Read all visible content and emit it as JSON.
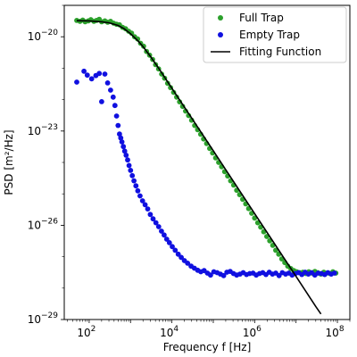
{
  "chart_data": {
    "type": "scatter",
    "title": "",
    "xlabel": "Frequency f [Hz]",
    "ylabel": "PSD [m²/Hz]",
    "x_scale": "log",
    "y_scale": "log",
    "xlim": [
      25,
      200000000
    ],
    "ylim": [
      1e-29,
      1e-19
    ],
    "x_ticks": [
      {
        "value": 100,
        "base": "10",
        "exp": "2"
      },
      {
        "value": 10000,
        "base": "10",
        "exp": "4"
      },
      {
        "value": 1000000,
        "base": "10",
        "exp": "6"
      },
      {
        "value": 100000000,
        "base": "10",
        "exp": "8"
      }
    ],
    "y_ticks": [
      {
        "value": 1e-20,
        "base": "10",
        "exp": "−20"
      },
      {
        "value": 1e-23,
        "base": "10",
        "exp": "−23"
      },
      {
        "value": 1e-26,
        "base": "10",
        "exp": "−26"
      },
      {
        "value": 1e-29,
        "base": "10",
        "exp": "−29"
      }
    ],
    "grid": false,
    "legend_position": "top-right",
    "series": [
      {
        "name": "Full Trap",
        "kind": "scatter",
        "color": "#2ca02c",
        "points": [
          [
            50,
            3.3e-20
          ],
          [
            60,
            3.1e-20
          ],
          [
            70,
            3.4e-20
          ],
          [
            80,
            3e-20
          ],
          [
            95,
            3.2e-20
          ],
          [
            110,
            3.5e-20
          ],
          [
            130,
            3.1e-20
          ],
          [
            150,
            3.3e-20
          ],
          [
            175,
            3.6e-20
          ],
          [
            200,
            3e-20
          ],
          [
            240,
            3.2e-20
          ],
          [
            280,
            2.9e-20
          ],
          [
            330,
            3.1e-20
          ],
          [
            390,
            2.7e-20
          ],
          [
            460,
            2.5e-20
          ],
          [
            540,
            2.4e-20
          ],
          [
            640,
            2e-20
          ],
          [
            760,
            1.8e-20
          ],
          [
            900,
            1.5e-20
          ],
          [
            1060,
            1.3e-20
          ],
          [
            1250,
            1e-20
          ],
          [
            1480,
            8.5e-21
          ],
          [
            1750,
            6.2e-21
          ],
          [
            2070,
            5e-21
          ],
          [
            2440,
            3.4e-21
          ],
          [
            2890,
            2.6e-21
          ],
          [
            3410,
            1.9e-21
          ],
          [
            4030,
            1.3e-21
          ],
          [
            4760,
            9.5e-22
          ],
          [
            5630,
            6.5e-22
          ],
          [
            6650,
            4.8e-22
          ],
          [
            7860,
            3.3e-22
          ],
          [
            9290,
            2.4e-22
          ],
          [
            11000,
            1.7e-22
          ],
          [
            13000,
            1.2e-22
          ],
          [
            15300,
            8.5e-23
          ],
          [
            18100,
            6.1e-23
          ],
          [
            21400,
            4.3e-23
          ],
          [
            25300,
            3.1e-23
          ],
          [
            29900,
            2.2e-23
          ],
          [
            35400,
            1.5e-23
          ],
          [
            41800,
            1.1e-23
          ],
          [
            49400,
            7.9e-24
          ],
          [
            58400,
            5.6e-24
          ],
          [
            69000,
            4e-24
          ],
          [
            81600,
            2.8e-24
          ],
          [
            96400,
            2e-24
          ],
          [
            114000,
            1.4e-24
          ],
          [
            135000,
            1e-24
          ],
          [
            159000,
            7.3e-25
          ],
          [
            188000,
            5.1e-25
          ],
          [
            223000,
            3.7e-25
          ],
          [
            263000,
            2.6e-25
          ],
          [
            311000,
            1.9e-25
          ],
          [
            368000,
            1.3e-25
          ],
          [
            434000,
            9.4e-26
          ],
          [
            514000,
            6.7e-26
          ],
          [
            607000,
            4.8e-26
          ],
          [
            717000,
            3.4e-26
          ],
          [
            848000,
            2.4e-26
          ],
          [
            1000000,
            1.7e-26
          ],
          [
            1190000,
            1.2e-26
          ],
          [
            1400000,
            8.7e-27
          ],
          [
            1660000,
            6.2e-27
          ],
          [
            1960000,
            4.4e-27
          ],
          [
            2310000,
            3.2e-27
          ],
          [
            2740000,
            2.3e-27
          ],
          [
            3230000,
            1.6e-27
          ],
          [
            3820000,
            1.2e-27
          ],
          [
            4520000,
            8.5e-28
          ],
          [
            5340000,
            6.5e-28
          ],
          [
            6310000,
            5e-28
          ],
          [
            7460000,
            4.2e-28
          ],
          [
            8820000,
            3.6e-28
          ],
          [
            10400000,
            3.3e-28
          ],
          [
            12300000,
            3.1e-28
          ],
          [
            14600000,
            3.2e-28
          ],
          [
            17200000,
            2.9e-28
          ],
          [
            20400000,
            3.3e-28
          ],
          [
            24100000,
            3e-28
          ],
          [
            28500000,
            3.4e-28
          ],
          [
            33700000,
            3.1e-28
          ],
          [
            39800000,
            2.8e-28
          ],
          [
            47000000,
            3.2e-28
          ],
          [
            55600000,
            3e-28
          ],
          [
            65700000,
            2.9e-28
          ],
          [
            77700000,
            3.3e-28
          ],
          [
            91800000,
            3e-28
          ]
        ]
      },
      {
        "name": "Empty Trap",
        "kind": "scatter",
        "color": "#1010e0",
        "points": [
          [
            50,
            3.6e-22
          ],
          [
            75,
            8e-22
          ],
          [
            90,
            6e-22
          ],
          [
            115,
            4.6e-22
          ],
          [
            145,
            5.8e-22
          ],
          [
            175,
            6.8e-22
          ],
          [
            200,
            8.6e-23
          ],
          [
            240,
            6.5e-22
          ],
          [
            280,
            3.4e-22
          ],
          [
            330,
            2e-22
          ],
          [
            380,
            1.2e-22
          ],
          [
            420,
            6.5e-23
          ],
          [
            460,
            3e-23
          ],
          [
            500,
            1.5e-23
          ],
          [
            540,
            8e-24
          ],
          [
            580,
            6e-24
          ],
          [
            620,
            4.5e-24
          ],
          [
            670,
            3.2e-24
          ],
          [
            720,
            2.3e-24
          ],
          [
            780,
            1.7e-24
          ],
          [
            850,
            1.2e-24
          ],
          [
            920,
            8e-25
          ],
          [
            1000,
            5.6e-25
          ],
          [
            1100,
            3.8e-25
          ],
          [
            1210,
            2.6e-25
          ],
          [
            1350,
            1.8e-25
          ],
          [
            1500,
            1.25e-25
          ],
          [
            1700,
            8.6e-26
          ],
          [
            1950,
            6e-26
          ],
          [
            2250,
            4.5e-26
          ],
          [
            2600,
            3.3e-26
          ],
          [
            3000,
            2.2e-26
          ],
          [
            3500,
            1.6e-26
          ],
          [
            4100,
            1.2e-26
          ],
          [
            4800,
            9e-27
          ],
          [
            5600,
            6.5e-27
          ],
          [
            6500,
            4.9e-27
          ],
          [
            7500,
            3.6e-27
          ],
          [
            8700,
            2.8e-27
          ],
          [
            10200,
            2.1e-27
          ],
          [
            12000,
            1.6e-27
          ],
          [
            14200,
            1.2e-27
          ],
          [
            16800,
            9.5e-28
          ],
          [
            20000,
            7.5e-28
          ],
          [
            24000,
            6.2e-28
          ],
          [
            29000,
            5e-28
          ],
          [
            35000,
            4.3e-28
          ],
          [
            42000,
            3.7e-28
          ],
          [
            50000,
            3.3e-28
          ],
          [
            60000,
            3.6e-28
          ],
          [
            72000,
            3e-28
          ],
          [
            86000,
            2.6e-28
          ],
          [
            103000,
            3.3e-28
          ],
          [
            124000,
            3.1e-28
          ],
          [
            148000,
            2.8e-28
          ],
          [
            178000,
            2.5e-28
          ],
          [
            213000,
            3.2e-28
          ],
          [
            256000,
            3.4e-28
          ],
          [
            307000,
            2.9e-28
          ],
          [
            368000,
            2.6e-28
          ],
          [
            441000,
            2.8e-28
          ],
          [
            529000,
            3.1e-28
          ],
          [
            634000,
            2.7e-28
          ],
          [
            760000,
            2.9e-28
          ],
          [
            911000,
            3e-28
          ],
          [
            1090000,
            2.6e-28
          ],
          [
            1310000,
            2.9e-28
          ],
          [
            1570000,
            3.1e-28
          ],
          [
            1880000,
            2.7e-28
          ],
          [
            2260000,
            3.2e-28
          ],
          [
            2700000,
            2.8e-28
          ],
          [
            3240000,
            3e-28
          ],
          [
            3890000,
            2.5e-28
          ],
          [
            4660000,
            3.1e-28
          ],
          [
            5590000,
            2.8e-28
          ],
          [
            6700000,
            3e-28
          ],
          [
            8030000,
            2.6e-28
          ],
          [
            9630000,
            2.9e-28
          ],
          [
            11500000,
            3.1e-28
          ],
          [
            13800000,
            2.7e-28
          ],
          [
            16600000,
            3.2e-28
          ],
          [
            19900000,
            2.8e-28
          ],
          [
            23800000,
            3.1e-28
          ],
          [
            28600000,
            2.6e-28
          ],
          [
            34300000,
            3e-28
          ],
          [
            41100000,
            2.9e-28
          ],
          [
            49200000,
            2.7e-28
          ],
          [
            59000000,
            3.1e-28
          ],
          [
            70800000,
            2.8e-28
          ],
          [
            84900000,
            3e-28
          ]
        ]
      },
      {
        "name": "Fitting Function",
        "kind": "line",
        "color": "#000000",
        "points": [
          [
            50,
            3.25e-20
          ],
          [
            100,
            3.2e-20
          ],
          [
            200,
            3e-20
          ],
          [
            300,
            2.8e-20
          ],
          [
            500,
            2.3e-20
          ],
          [
            700,
            1.8e-20
          ],
          [
            1000,
            1.25e-20
          ],
          [
            1500,
            7.5e-21
          ],
          [
            2000,
            4.9e-21
          ],
          [
            3000,
            2.4e-21
          ],
          [
            5000,
            9.1e-22
          ],
          [
            10000,
            2.3e-22
          ],
          [
            30000,
            2.6e-23
          ],
          [
            100000,
            2.35e-24
          ],
          [
            300000,
            2.6e-25
          ],
          [
            1000000,
            2.35e-26
          ],
          [
            3000000,
            2.6e-27
          ],
          [
            10000000,
            2.35e-28
          ],
          [
            30000000,
            2.6e-29
          ],
          [
            40000000,
            1.5e-29
          ]
        ]
      }
    ]
  }
}
